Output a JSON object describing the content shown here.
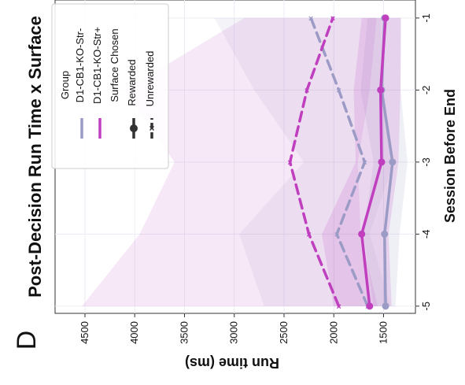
{
  "panel_label": "D",
  "chart_data": {
    "type": "line",
    "title": "Post-Decision Run Time x Surface",
    "xlabel": "Session Before End",
    "ylabel": "Run time (ms)",
    "categories": [
      "-5",
      "-4",
      "-3",
      "-2",
      "-1"
    ],
    "x_values": [
      -5,
      -4,
      -3,
      -2,
      -1
    ],
    "x_ticks": [
      -5,
      -4,
      -3,
      -2,
      -1
    ],
    "x_tick_labels": [
      "-5",
      "-4",
      "-3",
      "-2",
      "-1"
    ],
    "y_ticks": [
      1500,
      2000,
      2500,
      3000,
      3500,
      4000,
      4500
    ],
    "y_tick_labels": [
      "1500",
      "2000",
      "2500",
      "3000",
      "3500",
      "4000",
      "4500"
    ],
    "ylim": [
      4800,
      1180
    ],
    "xlim": [
      -5.1,
      -0.75
    ],
    "orientation": "rotated-90-clockwise",
    "grid": true,
    "legend_placement": "top-left",
    "legend": {
      "group_title": "Group",
      "group_entries": [
        "D1-CB1-KO-Str-",
        "D1-CB1-KO-Str+"
      ],
      "style_title": "Surface Chosen",
      "style_entries": [
        "Rewarded",
        "Unrewarded"
      ]
    },
    "colors": {
      "D1-CB1-KO-Str-": "#9b9bc6",
      "D1-CB1-KO-Str+": "#bf3fbf"
    },
    "series": [
      {
        "name": "D1-CB1-KO-Str-",
        "style": "Rewarded",
        "values": [
          1480,
          1490,
          1410,
          1520,
          1490
        ],
        "ci_low": [
          1380,
          1340,
          1260,
          1330,
          1320
        ],
        "ci_high": [
          1600,
          1700,
          1600,
          1730,
          1660
        ]
      },
      {
        "name": "D1-CB1-KO-Str-",
        "style": "Unrewarded",
        "values": [
          1660,
          1970,
          1690,
          1950,
          2230
        ],
        "ci_low": [
          1430,
          1640,
          1400,
          1500,
          1530
        ],
        "ci_high": [
          2700,
          2950,
          2300,
          2800,
          3200
        ]
      },
      {
        "name": "D1-CB1-KO-Str+",
        "style": "Rewarded",
        "values": [
          1640,
          1720,
          1520,
          1530,
          1480
        ],
        "ci_low": [
          1420,
          1450,
          1350,
          1330,
          1330
        ],
        "ci_high": [
          2000,
          2120,
          1780,
          1800,
          1720
        ]
      },
      {
        "name": "D1-CB1-KO-Str+",
        "style": "Unrewarded",
        "values": [
          1950,
          2250,
          2440,
          2270,
          2010
        ],
        "ci_low": [
          1560,
          1730,
          1760,
          1640,
          1570
        ],
        "ci_high": [
          4530,
          3950,
          3600,
          4100,
          2900
        ]
      }
    ]
  }
}
